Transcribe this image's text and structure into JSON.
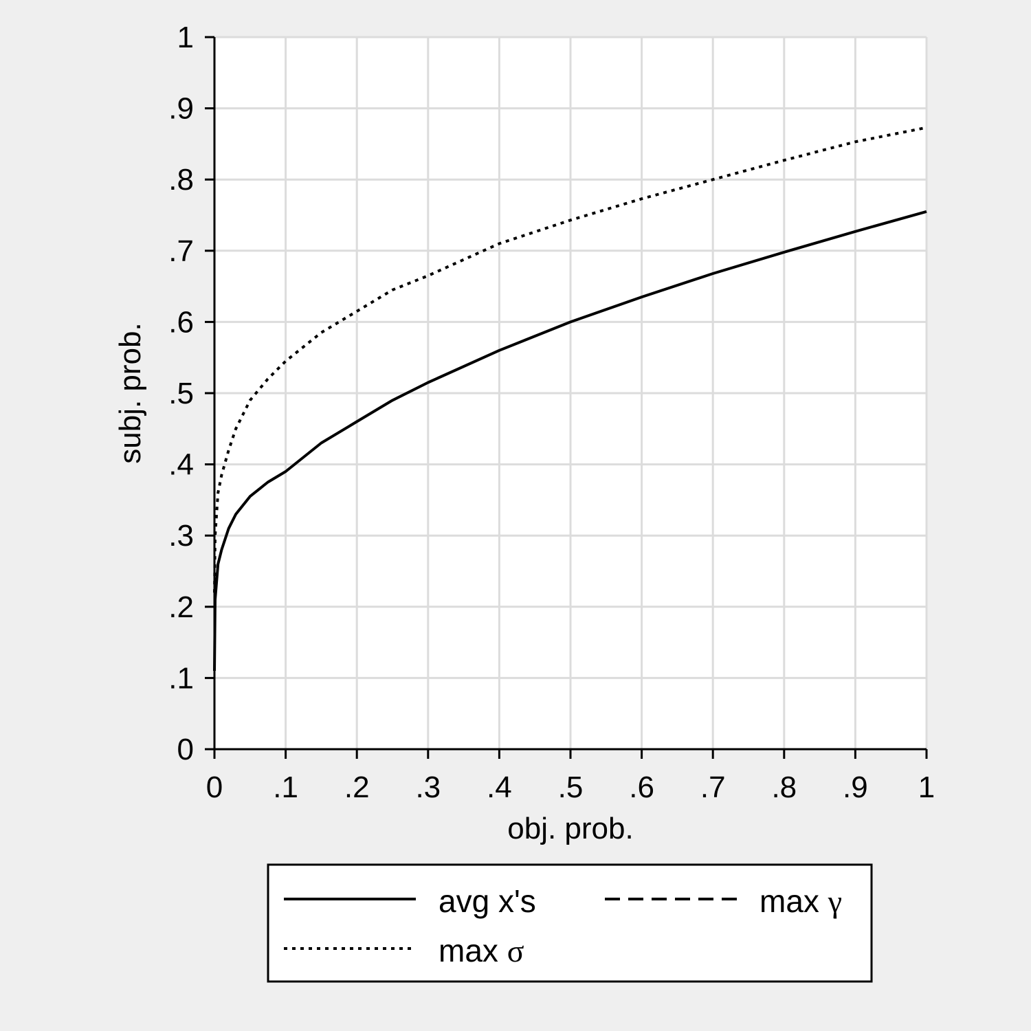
{
  "chart_data": {
    "type": "line",
    "title": "",
    "xlabel": "obj. prob.",
    "ylabel": "subj. prob.",
    "xlim": [
      0,
      1
    ],
    "ylim": [
      0,
      1
    ],
    "x_ticks": [
      "0",
      ".1",
      ".2",
      ".3",
      ".4",
      ".5",
      ".6",
      ".7",
      ".8",
      ".9",
      "1"
    ],
    "y_ticks": [
      "0",
      ".1",
      ".2",
      ".3",
      ".4",
      ".5",
      ".6",
      ".7",
      ".8",
      ".9",
      "1"
    ],
    "grid": true,
    "legend_position": "bottom",
    "legend": {
      "entries": [
        {
          "prefix": "avg x's",
          "symbol": "",
          "style": "solid"
        },
        {
          "prefix": "max ",
          "symbol": "γ",
          "style": "dashed"
        },
        {
          "prefix": "max ",
          "symbol": "σ",
          "style": "dotted"
        }
      ]
    },
    "series": [
      {
        "name": "avg x's",
        "style": "solid",
        "x": [
          0,
          0.001,
          0.005,
          0.01,
          0.02,
          0.03,
          0.05,
          0.075,
          0.1,
          0.15,
          0.2,
          0.25,
          0.3,
          0.4,
          0.5,
          0.6,
          0.7,
          0.8,
          0.9,
          1.0
        ],
        "y": [
          0.11,
          0.21,
          0.26,
          0.28,
          0.31,
          0.33,
          0.355,
          0.375,
          0.39,
          0.43,
          0.46,
          0.49,
          0.515,
          0.56,
          0.6,
          0.635,
          0.668,
          0.698,
          0.727,
          0.755
        ]
      },
      {
        "name": "max σ",
        "style": "dotted",
        "x": [
          0,
          0.001,
          0.005,
          0.01,
          0.02,
          0.03,
          0.05,
          0.075,
          0.1,
          0.15,
          0.2,
          0.25,
          0.3,
          0.4,
          0.5,
          0.6,
          0.7,
          0.8,
          0.9,
          1.0
        ],
        "y": [
          0.22,
          0.3,
          0.36,
          0.385,
          0.42,
          0.45,
          0.49,
          0.52,
          0.545,
          0.585,
          0.615,
          0.645,
          0.665,
          0.71,
          0.743,
          0.773,
          0.8,
          0.827,
          0.853,
          0.873
        ]
      }
    ]
  }
}
